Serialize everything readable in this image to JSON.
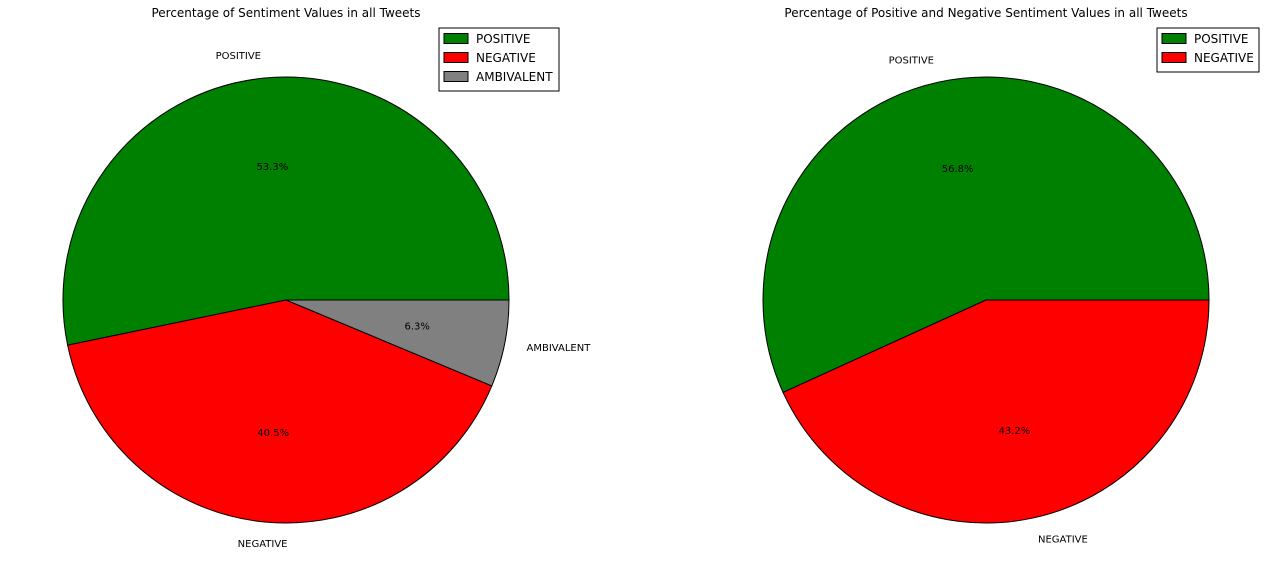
{
  "chart_data": [
    {
      "type": "pie",
      "title": "Percentage of Sentiment Values in all Tweets",
      "start_angle_deg": 0,
      "direction": "counterclockwise",
      "legend_position": "top-right",
      "slices": [
        {
          "label": "POSITIVE",
          "value": 53.3,
          "pct_text": "53.3%",
          "color": "#008000"
        },
        {
          "label": "NEGATIVE",
          "value": 40.5,
          "pct_text": "40.5%",
          "color": "#ff0000"
        },
        {
          "label": "AMBIVALENT",
          "value": 6.3,
          "pct_text": "6.3%",
          "color": "#808080"
        }
      ]
    },
    {
      "type": "pie",
      "title": "Percentage of Positive and Negative Sentiment Values in all Tweets",
      "start_angle_deg": 0,
      "direction": "counterclockwise",
      "legend_position": "top-right",
      "slices": [
        {
          "label": "POSITIVE",
          "value": 56.8,
          "pct_text": "56.8%",
          "color": "#008000"
        },
        {
          "label": "NEGATIVE",
          "value": 43.2,
          "pct_text": "43.2%",
          "color": "#ff0000"
        }
      ]
    }
  ]
}
